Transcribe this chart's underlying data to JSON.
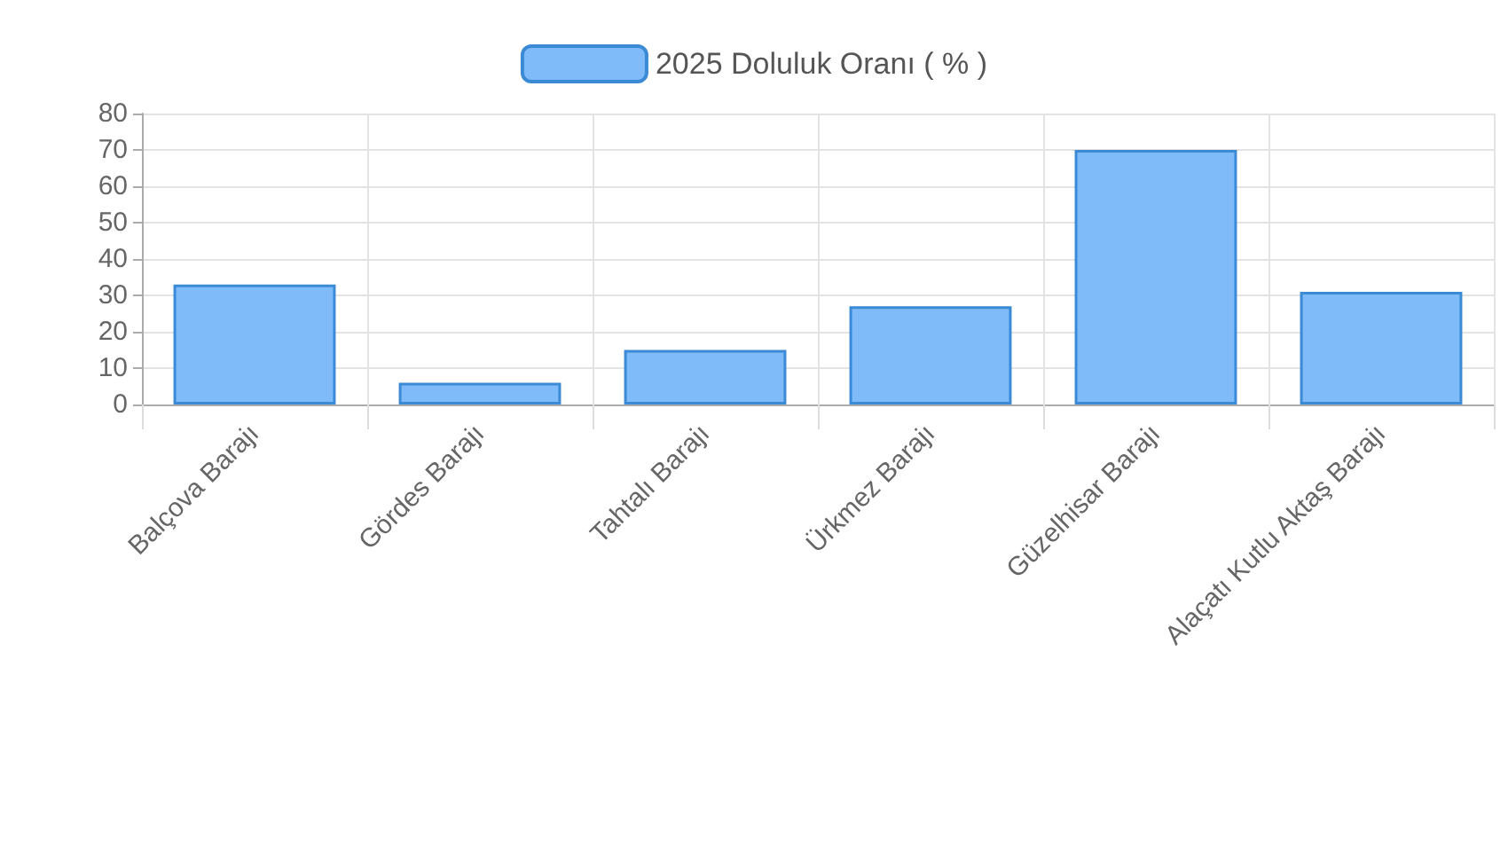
{
  "chart_data": {
    "type": "bar",
    "categories": [
      "Balçova Barajı",
      "Gördes Barajı",
      "Tahtalı Barajı",
      "Ürkmez Barajı",
      "Güzelhisar Barajı",
      "Alaçatı Kutlu Aktaş Barajı"
    ],
    "series": [
      {
        "name": "2025 Doluluk Oranı ( % )",
        "color": "#80bbf9",
        "values": [
          33,
          6,
          15,
          27,
          70,
          31
        ]
      }
    ],
    "ylim": [
      0,
      80
    ],
    "yticks": [
      0,
      10,
      20,
      30,
      40,
      50,
      60,
      70,
      80
    ],
    "grid": true,
    "legend": "top"
  }
}
